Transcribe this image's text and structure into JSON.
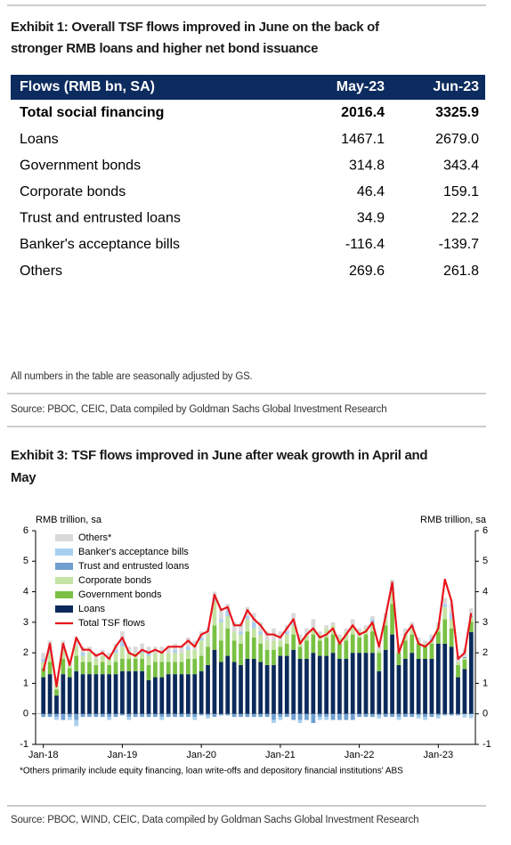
{
  "exhibit1": {
    "title_lines": [
      "Exhibit 1: Overall TSF flows improved in June on the back of",
      "stronger RMB loans and higher net bond issuance"
    ],
    "table": {
      "header": [
        "Flows (RMB bn, SA)",
        "May-23",
        "Jun-23"
      ],
      "rows": [
        [
          "Total social financing",
          "2016.4",
          "3325.9"
        ],
        [
          "Loans",
          "1467.1",
          "2679.0"
        ],
        [
          "Government bonds",
          "314.8",
          "343.4"
        ],
        [
          "Corporate bonds",
          "46.4",
          "159.1"
        ],
        [
          "Trust and entrusted loans",
          "34.9",
          "22.2"
        ],
        [
          "Banker's acceptance bills",
          "-116.4",
          "-139.7"
        ],
        [
          "Others",
          "269.6",
          "261.8"
        ]
      ]
    },
    "note": "All numbers in the table are seasonally adjusted by GS.",
    "source": "Source: PBOC, CEIC, Data compiled by Goldman Sachs Global Investment Research"
  },
  "exhibit3": {
    "title_lines": [
      "Exhibit 3: TSF flows improved in June after weak growth in April and",
      "May"
    ],
    "footnote": "*Others primarily include equity financing, loan write-offs and depository financial institutions' ABS",
    "source": "Source: PBOC, WIND, CEIC, Data compiled by Goldman Sachs Global Investment Research"
  },
  "chart_data": {
    "type": "bar",
    "stacked": true,
    "y_label": "RMB trillion, sa",
    "y2_label": "RMB trillion, sa",
    "ylim": [
      -1,
      6
    ],
    "yticks": [
      -1,
      0,
      1,
      2,
      3,
      4,
      5,
      6
    ],
    "y2lim": [
      -1,
      6
    ],
    "y2ticks": [
      -1,
      0,
      1,
      2,
      3,
      4,
      5,
      6
    ],
    "legend": "top-left",
    "categories": [
      "Jan-18",
      null,
      null,
      null,
      null,
      null,
      null,
      null,
      null,
      null,
      null,
      null,
      "Jan-19",
      null,
      null,
      null,
      null,
      null,
      null,
      null,
      null,
      null,
      null,
      null,
      "Jan-20",
      null,
      null,
      null,
      null,
      null,
      null,
      null,
      null,
      null,
      null,
      null,
      "Jan-21",
      null,
      null,
      null,
      null,
      null,
      null,
      null,
      null,
      null,
      null,
      null,
      "Jan-22",
      null,
      null,
      null,
      null,
      null,
      null,
      null,
      null,
      null,
      null,
      null,
      "Jan-23",
      null,
      null,
      null,
      null,
      null
    ],
    "series": [
      {
        "name": "Others*",
        "color": "#d9d9d9",
        "values": [
          0.2,
          0.3,
          0.2,
          0.2,
          0.2,
          0.2,
          0.2,
          0.2,
          0.2,
          0.2,
          0.2,
          0.2,
          0.2,
          0.2,
          0.2,
          0.2,
          0.2,
          0.2,
          0.2,
          0.2,
          0.2,
          0.2,
          0.3,
          0.3,
          0.2,
          0.2,
          0.2,
          0.3,
          0.2,
          0.3,
          0.3,
          0.3,
          0.3,
          0.3,
          0.3,
          0.4,
          0.3,
          0.2,
          0.3,
          0.2,
          0.2,
          0.3,
          0.1,
          0.1,
          0.1,
          0.1,
          0.1,
          0.2,
          0.1,
          0.1,
          0.1,
          0.1,
          0.2,
          0.2,
          0.2,
          0.2,
          0.1,
          0.1,
          0.1,
          0.1,
          0.1,
          0.2,
          0.3,
          0.2,
          0.27,
          0.26
        ]
      },
      {
        "name": "Banker's acceptance bills",
        "color": "#a9cfee",
        "values": [
          0.1,
          0.1,
          -0.1,
          0.1,
          -0.1,
          -0.2,
          0.1,
          0,
          0,
          0,
          -0.1,
          0.1,
          0.3,
          -0.1,
          0,
          0.1,
          0.1,
          0,
          -0.1,
          0,
          0.1,
          0,
          0.1,
          -0.1,
          0.1,
          -0.1,
          0.1,
          0.1,
          0.2,
          0,
          0.1,
          0.1,
          0.2,
          0.1,
          0,
          -0.1,
          -0.1,
          0.1,
          0.1,
          -0.1,
          0,
          0,
          -0.1,
          -0.1,
          0,
          0,
          0,
          0,
          0,
          0,
          0.1,
          -0.1,
          0,
          0.2,
          -0.1,
          0,
          0.1,
          -0.1,
          -0.1,
          0.1,
          -0.1,
          0.1,
          0.2,
          0,
          -0.12,
          -0.14
        ]
      },
      {
        "name": "Trust and entrusted loans",
        "color": "#6f9fd0",
        "values": [
          -0.1,
          -0.1,
          -0.1,
          -0.2,
          -0.1,
          -0.2,
          -0.1,
          -0.1,
          -0.1,
          -0.1,
          -0.1,
          -0.1,
          -0.05,
          -0.1,
          -0.1,
          -0.1,
          -0.1,
          -0.1,
          -0.1,
          -0.1,
          -0.1,
          -0.1,
          -0.1,
          -0.1,
          -0.05,
          -0.05,
          -0.1,
          -0.05,
          -0.05,
          -0.1,
          -0.1,
          -0.1,
          -0.1,
          -0.1,
          -0.1,
          -0.2,
          -0.1,
          -0.1,
          -0.2,
          -0.2,
          -0.2,
          -0.3,
          -0.1,
          -0.1,
          -0.2,
          -0.2,
          -0.2,
          -0.2,
          -0.1,
          -0.1,
          -0.1,
          -0.05,
          -0.1,
          -0.1,
          -0.1,
          -0.1,
          -0.1,
          -0.05,
          -0.1,
          -0.1,
          -0.05,
          -0.05,
          -0.05,
          -0.05,
          0.03,
          0.02
        ]
      },
      {
        "name": "Corporate bonds",
        "color": "#c4e3a5",
        "values": [
          0.2,
          0.3,
          0.2,
          0.3,
          0.1,
          0.3,
          0.2,
          0.3,
          0.2,
          0.2,
          0.2,
          0.3,
          0.4,
          0.2,
          0.2,
          0.2,
          0.3,
          0.3,
          0.3,
          0.3,
          0.3,
          0.3,
          0.3,
          0.3,
          0.5,
          0.4,
          0.8,
          0.6,
          0.4,
          0.3,
          0.3,
          0.4,
          0.3,
          0.3,
          0.3,
          0.3,
          0.2,
          0.3,
          0.3,
          0.2,
          0.2,
          0.2,
          0.2,
          0.3,
          0.3,
          0.2,
          0.3,
          0.3,
          0.2,
          0.2,
          0.3,
          0.1,
          0.2,
          0.4,
          0.1,
          0.2,
          0.2,
          0.1,
          0.1,
          0.1,
          0.2,
          0.4,
          0.3,
          0.1,
          0.05,
          0.16
        ]
      },
      {
        "name": "Government bonds",
        "color": "#7ac143",
        "values": [
          0.3,
          0.4,
          0.2,
          0.5,
          0.3,
          0.5,
          0.4,
          0.4,
          0.3,
          0.4,
          0.3,
          0.4,
          0.4,
          0.4,
          0.4,
          0.4,
          0.5,
          0.5,
          0.5,
          0.4,
          0.4,
          0.4,
          0.5,
          0.5,
          0.5,
          0.6,
          0.8,
          0.7,
          0.9,
          0.7,
          0.7,
          0.9,
          0.7,
          0.6,
          0.5,
          0.5,
          0.3,
          0.4,
          0.5,
          0.4,
          0.6,
          0.6,
          0.5,
          0.6,
          0.6,
          0.5,
          0.6,
          0.6,
          0.5,
          0.6,
          0.7,
          0.6,
          0.8,
          1.0,
          0.4,
          0.6,
          0.6,
          0.5,
          0.4,
          0.5,
          0.4,
          0.8,
          0.6,
          0.4,
          0.31,
          0.34
        ]
      },
      {
        "name": "Loans",
        "color": "#0b2a5b",
        "values": [
          1.2,
          1.3,
          0.6,
          1.3,
          1.2,
          1.4,
          1.3,
          1.3,
          1.3,
          1.3,
          1.3,
          1.3,
          1.4,
          1.4,
          1.4,
          1.4,
          1.1,
          1.2,
          1.2,
          1.3,
          1.3,
          1.3,
          1.3,
          1.3,
          1.4,
          1.6,
          2.1,
          1.7,
          1.9,
          1.7,
          1.6,
          1.8,
          1.8,
          1.7,
          1.6,
          1.6,
          1.9,
          1.9,
          2.1,
          1.8,
          1.8,
          2.0,
          1.9,
          1.9,
          2.0,
          1.8,
          1.8,
          2.0,
          2.0,
          2.0,
          2.0,
          1.4,
          2.1,
          2.6,
          1.6,
          1.8,
          2.0,
          1.8,
          1.8,
          1.8,
          2.3,
          2.3,
          2.2,
          1.2,
          1.47,
          2.68
        ]
      },
      {
        "name": "Total TSF flows",
        "type": "line",
        "color": "#e8141b",
        "values": [
          1.4,
          2.3,
          0.9,
          2.3,
          1.6,
          2.5,
          2.1,
          2.1,
          1.9,
          2.0,
          1.8,
          2.2,
          2.5,
          2.0,
          1.9,
          2.1,
          2.0,
          2.1,
          2.0,
          2.2,
          2.2,
          2.2,
          2.4,
          2.2,
          2.6,
          2.7,
          3.9,
          3.4,
          3.5,
          2.9,
          2.9,
          3.4,
          3.1,
          2.9,
          2.6,
          2.6,
          2.5,
          2.8,
          3.1,
          2.3,
          2.6,
          2.8,
          2.5,
          2.6,
          2.8,
          2.3,
          2.6,
          2.9,
          2.6,
          2.7,
          3.0,
          2.2,
          3.2,
          4.3,
          2.0,
          2.6,
          2.9,
          2.3,
          2.2,
          2.4,
          2.8,
          4.4,
          3.7,
          1.8,
          2.0,
          3.3
        ]
      }
    ]
  }
}
